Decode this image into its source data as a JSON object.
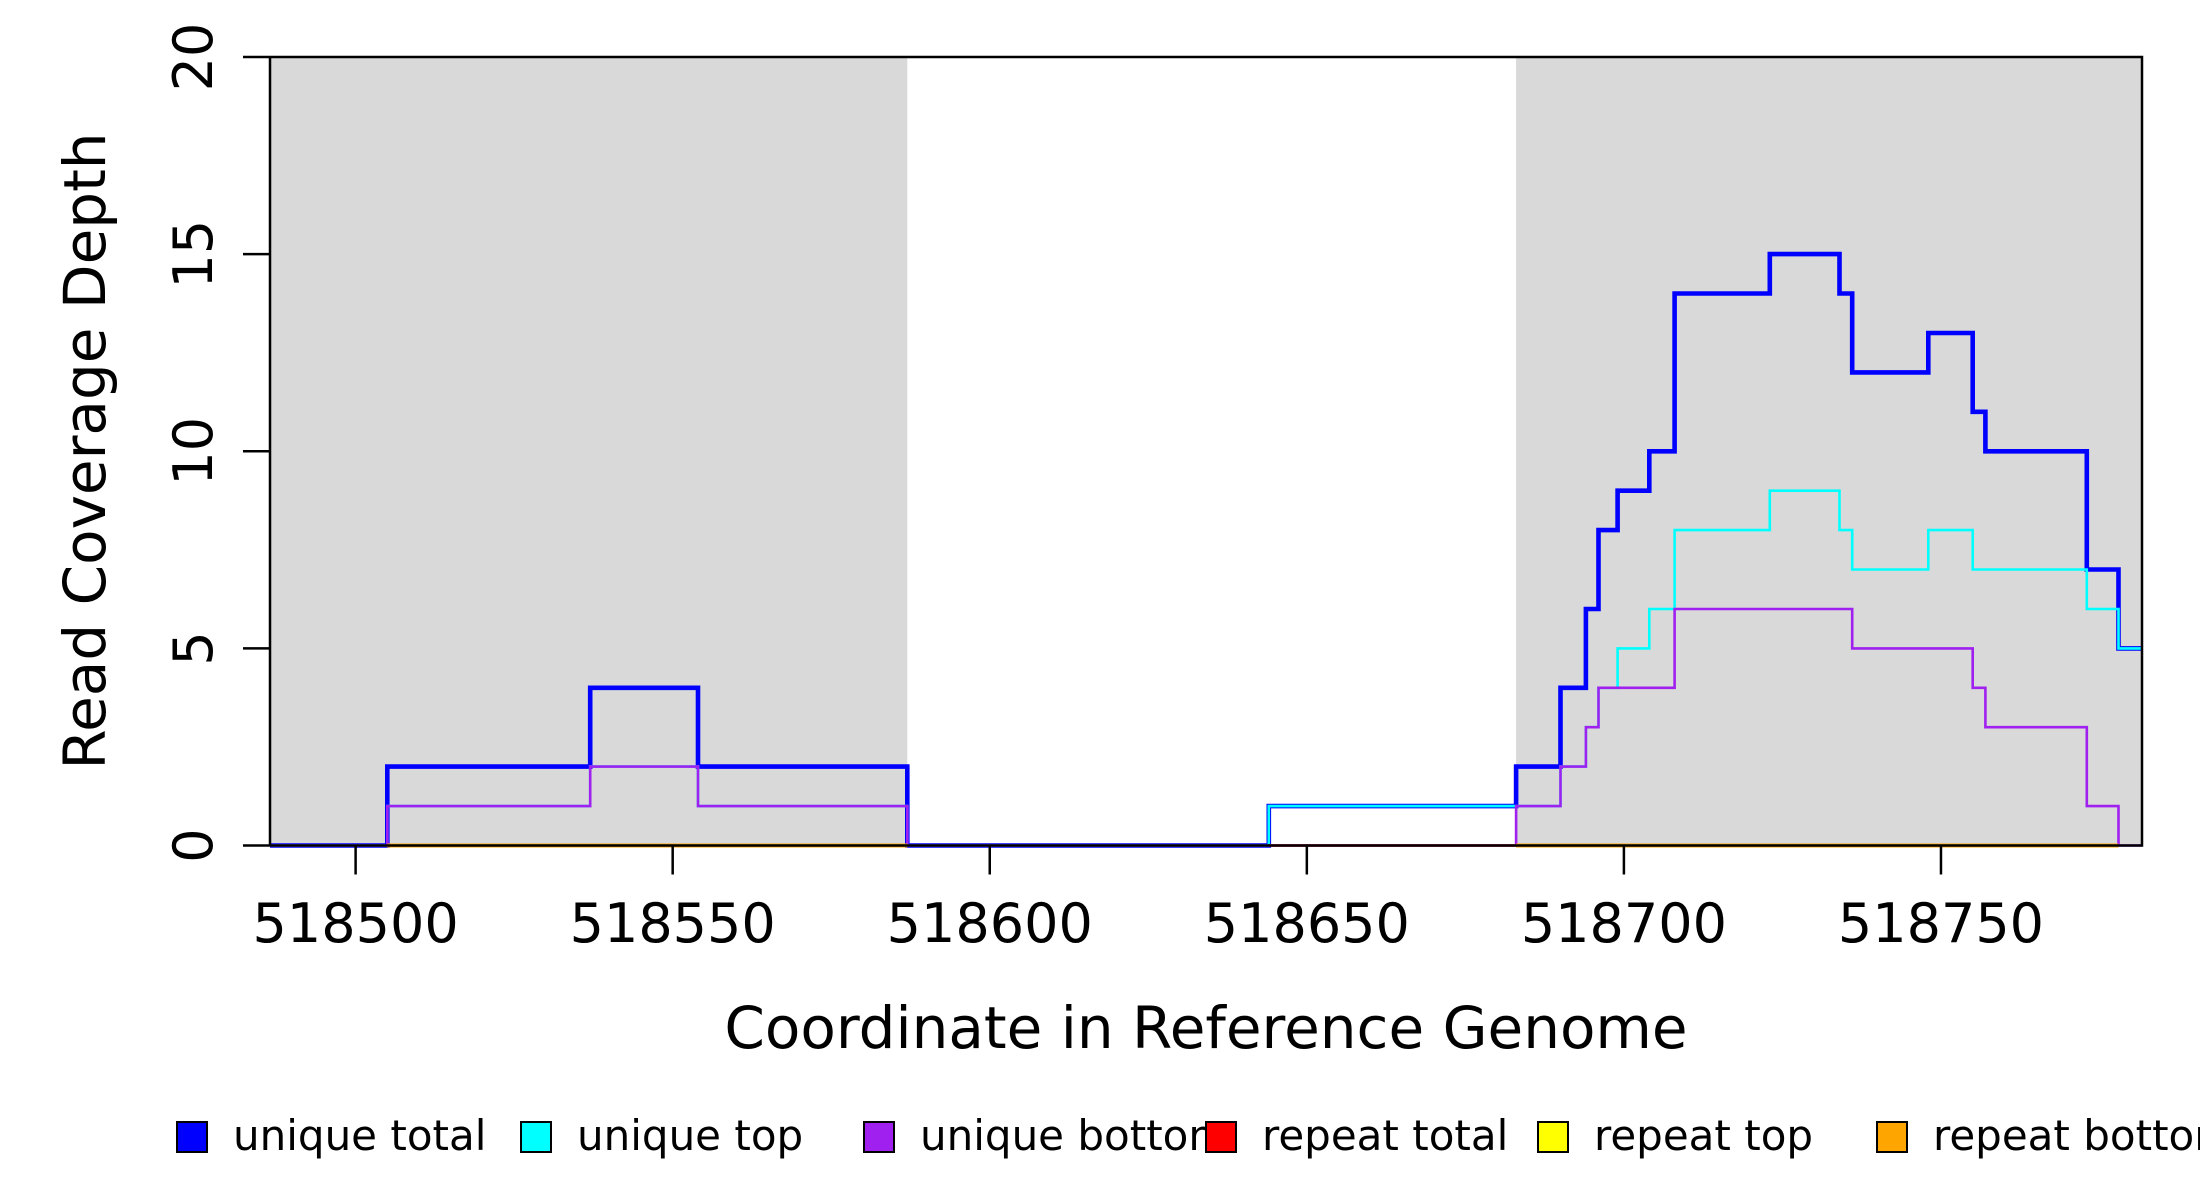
{
  "chart_data": {
    "type": "step",
    "title": "",
    "xlabel": "Coordinate in Reference Genome",
    "ylabel": "Read Coverage Depth",
    "xlim": [
      518486.5,
      518781.7
    ],
    "ylim": [
      0,
      20
    ],
    "xticks": [
      518500,
      518550,
      518600,
      518650,
      518700,
      518750
    ],
    "yticks": [
      0,
      5,
      10,
      15,
      20
    ],
    "grid": "off",
    "legend_position": "bottom",
    "background_color": "#FFFFFF",
    "box_color": "#000000",
    "shaded_regions": [
      {
        "name": "repeat-region-left",
        "from": 518486.5,
        "to": 518587,
        "color": "#D9D9D9"
      },
      {
        "name": "repeat-region-right",
        "from": 518683,
        "to": 518781.7,
        "color": "#D9D9D9"
      }
    ],
    "series": [
      {
        "name": "unique total",
        "color": "#0000FF",
        "line_width": 4.6,
        "segments": [
          {
            "x": [
              518486.5,
              518505,
              518537,
              518554,
              518587,
              518644,
              518683,
              518690,
              518694,
              518696,
              518699,
              518704,
              518708,
              518723,
              518734,
              518736,
              518748,
              518755,
              518757,
              518773,
              518778
            ],
            "y": [
              0,
              2,
              4,
              2,
              0,
              1,
              2,
              4,
              6,
              8,
              9,
              10,
              14,
              15,
              14,
              12,
              13,
              11,
              10,
              7,
              5
            ],
            "end": 518781.7
          }
        ]
      },
      {
        "name": "unique top",
        "color": "#00FFFF",
        "line_width": 2.6,
        "segments": [
          {
            "x": [
              518486.5,
              518505,
              518537,
              518554,
              518587,
              518644,
              518690,
              518694,
              518696,
              518699,
              518704,
              518708,
              518723,
              518734,
              518736,
              518748,
              518755,
              518773,
              518778
            ],
            "y": [
              0,
              1,
              2,
              1,
              0,
              1,
              2,
              3,
              4,
              5,
              6,
              8,
              9,
              8,
              7,
              8,
              7,
              6,
              5
            ],
            "end": 518781.7
          }
        ]
      },
      {
        "name": "unique bottom",
        "color": "#A020F0",
        "line_width": 2.6,
        "segments": [
          {
            "x": [
              518486.5,
              518505,
              518537,
              518554,
              518587,
              518683,
              518690,
              518694,
              518696,
              518708,
              518736,
              518755,
              518757,
              518773,
              518778
            ],
            "y": [
              0,
              1,
              2,
              1,
              0,
              1,
              2,
              3,
              4,
              6,
              5,
              4,
              3,
              1,
              0
            ],
            "end": 518781.7
          }
        ]
      },
      {
        "name": "repeat total",
        "color": "#FF0000",
        "line_width": 2.6,
        "segments": [
          {
            "x": [
              518644
            ],
            "y": [
              0
            ],
            "end": 518778
          }
        ]
      },
      {
        "name": "repeat top",
        "color": "#FFFF00",
        "line_width": 2.6,
        "segments": [
          {
            "x": [
              518505
            ],
            "y": [
              0
            ],
            "end": 518587
          },
          {
            "x": [
              518683
            ],
            "y": [
              0
            ],
            "end": 518778
          }
        ]
      },
      {
        "name": "repeat bottom",
        "color": "#FFA500",
        "line_width": 4.0,
        "segments": [
          {
            "x": [
              518505
            ],
            "y": [
              0
            ],
            "end": 518587
          },
          {
            "x": [
              518683
            ],
            "y": [
              0
            ],
            "end": 518778
          }
        ]
      }
    ]
  },
  "legend": {
    "items": [
      {
        "label": "unique total",
        "color": "#0000FF"
      },
      {
        "label": "unique top",
        "color": "#00FFFF"
      },
      {
        "label": "unique bottom",
        "color": "#A020F0"
      },
      {
        "label": "repeat total",
        "color": "#FF0000"
      },
      {
        "label": "repeat top",
        "color": "#FFFF00"
      },
      {
        "label": "repeat bottom",
        "color": "#FFA500"
      }
    ]
  }
}
